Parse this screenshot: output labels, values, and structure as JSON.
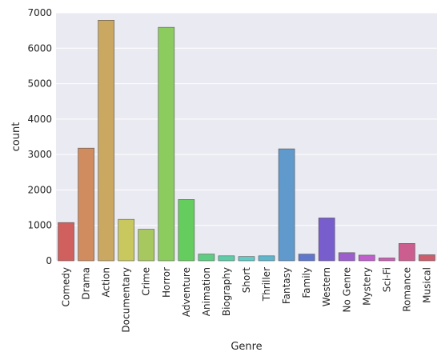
{
  "chart_data": {
    "type": "bar",
    "xlabel": "Genre",
    "ylabel": "count",
    "ylim": [
      0,
      7000
    ],
    "yticks": [
      0,
      1000,
      2000,
      3000,
      4000,
      5000,
      6000,
      7000
    ],
    "grid": true,
    "categories": [
      "Comedy",
      "Drama",
      "Action",
      "Documentary",
      "Crime",
      "Horror",
      "Adventure",
      "Animation",
      "Biography",
      "Short",
      "Thriller",
      "Fantasy",
      "Family",
      "Western",
      "No Genre",
      "Mystery",
      "Sci-Fi",
      "Romance",
      "Musical"
    ],
    "values": [
      1080,
      3180,
      6790,
      1170,
      890,
      6590,
      1730,
      190,
      140,
      120,
      140,
      3160,
      190,
      1210,
      230,
      160,
      80,
      490,
      170
    ],
    "colors": [
      "#d0605e",
      "#d08b5e",
      "#caa862",
      "#c8c85e",
      "#a7c85e",
      "#8ccc5e",
      "#65cc5e",
      "#5ecc82",
      "#5ecca6",
      "#5eccc9",
      "#5eb5cc",
      "#6099cc",
      "#5e76cc",
      "#785ecc",
      "#9c5ecc",
      "#c05ecc",
      "#cc5eb3",
      "#cc5e8f",
      "#cc5e6c"
    ]
  }
}
